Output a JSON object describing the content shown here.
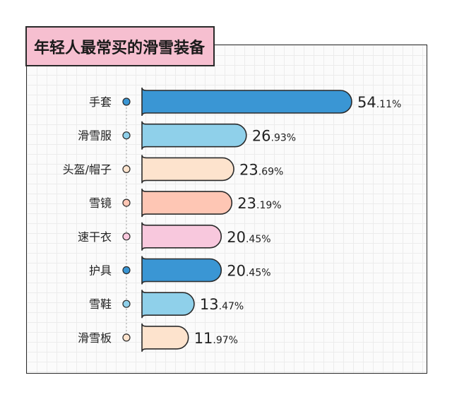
{
  "title": "年轻人最常买的滑雪装备",
  "chart_data": {
    "type": "bar",
    "orientation": "horizontal",
    "categories": [
      "手套",
      "滑雪服",
      "头盔/帽子",
      "雪镜",
      "速干衣",
      "护具",
      "雪鞋",
      "滑雪板"
    ],
    "values": [
      54.11,
      26.93,
      23.69,
      23.19,
      20.45,
      20.45,
      13.47,
      11.97
    ],
    "value_labels": [
      {
        "int": "54",
        "dec": ".11%"
      },
      {
        "int": "26",
        "dec": ".93%"
      },
      {
        "int": "23",
        "dec": ".69%"
      },
      {
        "int": "23",
        "dec": ".19%"
      },
      {
        "int": "20",
        "dec": ".45%"
      },
      {
        "int": "20",
        "dec": ".45%"
      },
      {
        "int": "13",
        "dec": ".47%"
      },
      {
        "int": "11",
        "dec": ".97%"
      }
    ],
    "colors": [
      "#3a96d4",
      "#8fd0ea",
      "#fde3cd",
      "#fec6b4",
      "#f8c8dd",
      "#3a96d4",
      "#8fd0ea",
      "#fde3cd"
    ],
    "xlabel": "",
    "ylabel": "",
    "grid": true,
    "legend": "none"
  }
}
